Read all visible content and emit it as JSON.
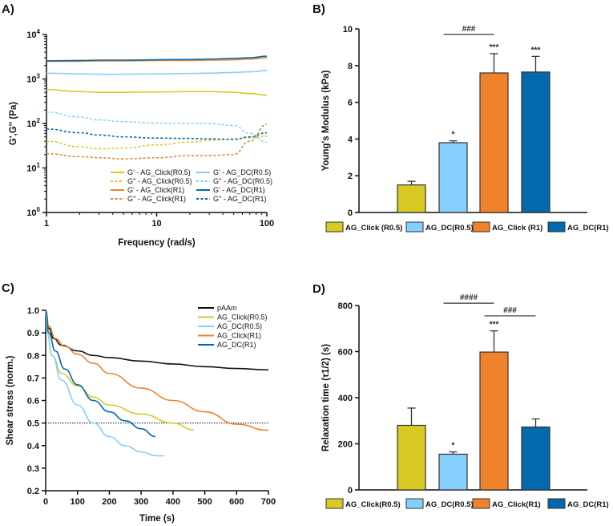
{
  "colors": {
    "click_r05": "#d8c925",
    "dc_r05": "#85cffc",
    "click_r1": "#ef832b",
    "dc_r1": "#0369ad",
    "pAAm": "#111111"
  },
  "chart_data": [
    {
      "panel": "A)",
      "type": "line",
      "xlabel": "Frequency (rad/s)",
      "ylabel": "G',G'' (Pa)",
      "xscale": "log",
      "yscale": "log",
      "xlim": [
        1,
        100
      ],
      "ylim": [
        1,
        10000
      ],
      "xticks": [
        "1",
        "10",
        "100"
      ],
      "yticks": [
        {
          "base": "10",
          "exp": "0"
        },
        {
          "base": "10",
          "exp": "1"
        },
        {
          "base": "10",
          "exp": "2"
        },
        {
          "base": "10",
          "exp": "3"
        },
        {
          "base": "10",
          "exp": "4"
        }
      ],
      "legend_placement": "bottom-right",
      "x": [
        1,
        2,
        3,
        5,
        10,
        20,
        30,
        50,
        70,
        100
      ],
      "series": [
        {
          "name": "G' - AG_Click(R0.5)",
          "color": "#d8c925",
          "dash": false,
          "values": [
            580,
            520,
            500,
            500,
            510,
            520,
            520,
            500,
            470,
            430
          ]
        },
        {
          "name": "G'' - AG_Click(R0.5)",
          "color": "#d8c925",
          "dash": true,
          "values": [
            40,
            30,
            27,
            28,
            33,
            38,
            42,
            45,
            48,
            52
          ]
        },
        {
          "name": "G' - AG_Click(R1)",
          "color": "#ef832b",
          "dash": false,
          "values": [
            2500,
            2500,
            2550,
            2550,
            2600,
            2600,
            2650,
            2700,
            2800,
            3000
          ]
        },
        {
          "name": "G'' - AG_Click(R1)",
          "color": "#ef832b",
          "dash": true,
          "values": [
            21,
            18,
            17,
            16,
            17,
            19,
            19,
            20,
            40,
            95
          ]
        },
        {
          "name": "G' - AG_DC(R0.5)",
          "color": "#85cffc",
          "dash": false,
          "values": [
            1350,
            1300,
            1280,
            1280,
            1300,
            1330,
            1350,
            1400,
            1450,
            1550
          ]
        },
        {
          "name": "G'' - AG_DC(R0.5)",
          "color": "#85cffc",
          "dash": true,
          "values": [
            180,
            140,
            120,
            110,
            102,
            100,
            100,
            90,
            60,
            38
          ]
        },
        {
          "name": "G' - AG_DC(R1)",
          "color": "#0369ad",
          "dash": false,
          "values": [
            2550,
            2600,
            2650,
            2650,
            2700,
            2750,
            2800,
            2900,
            3000,
            3250
          ]
        },
        {
          "name": "G'' - AG_DC(R1)",
          "color": "#0369ad",
          "dash": true,
          "values": [
            75,
            62,
            55,
            50,
            47,
            46,
            45,
            44,
            50,
            62
          ]
        }
      ]
    },
    {
      "panel": "B)",
      "type": "bar",
      "ylabel": "Young's Modulus (kPa)",
      "ylim": [
        0,
        10
      ],
      "yticks": [
        0,
        2,
        4,
        6,
        8,
        10
      ],
      "categories": [
        "AG_Click (R0.5)",
        "AG_DC(R0.5)",
        "AG_Click (R1)",
        "AG_DC(R1)"
      ],
      "values": [
        1.5,
        3.8,
        7.6,
        7.65
      ],
      "errors": [
        0.2,
        0.1,
        1.05,
        0.85
      ],
      "colors": [
        "#d8c925",
        "#85cffc",
        "#ef832b",
        "#0369ad"
      ],
      "significance": [
        "",
        "*",
        "***",
        "***"
      ],
      "brackets": [
        {
          "from": 1,
          "to": 2,
          "label": "###",
          "y": 9.7
        }
      ],
      "legend_placement": "bottom"
    },
    {
      "panel": "C)",
      "type": "line",
      "xlabel": "Time (s)",
      "ylabel": "Shear stress (norm.)",
      "xlim": [
        0,
        700
      ],
      "ylim": [
        0.2,
        1.0
      ],
      "xticks": [
        0,
        100,
        200,
        300,
        400,
        500,
        600,
        700
      ],
      "yticks": [
        "0.2",
        "0.3",
        "0.4",
        "0.5",
        "0.6",
        "0.7",
        "0.8",
        "0.9",
        "1.0"
      ],
      "reference_line": 0.5,
      "legend_placement": "top-right",
      "series": [
        {
          "name": "pAAm",
          "color": "#111111",
          "points": [
            [
              0,
              1.0
            ],
            [
              10,
              0.92
            ],
            [
              25,
              0.875
            ],
            [
              50,
              0.845
            ],
            [
              100,
              0.82
            ],
            [
              150,
              0.8
            ],
            [
              200,
              0.79
            ],
            [
              300,
              0.775
            ],
            [
              400,
              0.762
            ],
            [
              500,
              0.75
            ],
            [
              600,
              0.742
            ],
            [
              700,
              0.736
            ]
          ]
        },
        {
          "name": "AG_Click(R0.5)",
          "color": "#d8c925",
          "points": [
            [
              0,
              1.0
            ],
            [
              5,
              0.9
            ],
            [
              20,
              0.8
            ],
            [
              50,
              0.72
            ],
            [
              100,
              0.665
            ],
            [
              150,
              0.615
            ],
            [
              200,
              0.58
            ],
            [
              300,
              0.54
            ],
            [
              400,
              0.5
            ],
            [
              465,
              0.47
            ]
          ]
        },
        {
          "name": "AG_DC(R0.5)",
          "color": "#85cffc",
          "points": [
            [
              0,
              1.0
            ],
            [
              5,
              0.9
            ],
            [
              20,
              0.8
            ],
            [
              50,
              0.69
            ],
            [
              100,
              0.58
            ],
            [
              150,
              0.5
            ],
            [
              200,
              0.44
            ],
            [
              250,
              0.4
            ],
            [
              300,
              0.372
            ],
            [
              350,
              0.355
            ],
            [
              372,
              0.355
            ]
          ]
        },
        {
          "name": "AG_Click(R1)",
          "color": "#ef832b",
          "points": [
            [
              0,
              1.0
            ],
            [
              10,
              0.93
            ],
            [
              30,
              0.875
            ],
            [
              60,
              0.84
            ],
            [
              100,
              0.805
            ],
            [
              150,
              0.765
            ],
            [
              200,
              0.72
            ],
            [
              300,
              0.655
            ],
            [
              400,
              0.6
            ],
            [
              500,
              0.55
            ],
            [
              600,
              0.495
            ],
            [
              700,
              0.468
            ]
          ]
        },
        {
          "name": "AG_DC(R1)",
          "color": "#0369ad",
          "points": [
            [
              0,
              1.0
            ],
            [
              10,
              0.9
            ],
            [
              30,
              0.82
            ],
            [
              60,
              0.74
            ],
            [
              100,
              0.67
            ],
            [
              150,
              0.6
            ],
            [
              200,
              0.55
            ],
            [
              250,
              0.51
            ],
            [
              300,
              0.475
            ],
            [
              345,
              0.44
            ]
          ]
        }
      ]
    },
    {
      "panel": "D)",
      "type": "bar",
      "ylabel": "Relaxation time (τ1/2) (s)",
      "ylim": [
        0,
        800
      ],
      "yticks": [
        0,
        200,
        400,
        600,
        800
      ],
      "categories": [
        "AG_Click(R0.5)",
        "AG_DC(R0.5)",
        "AG_Click(R1)",
        "AG_DC(R1)"
      ],
      "values": [
        280,
        155,
        598,
        273
      ],
      "errors": [
        75,
        10,
        92,
        35
      ],
      "colors": [
        "#d8c925",
        "#85cffc",
        "#ef832b",
        "#0369ad"
      ],
      "significance": [
        "",
        "*",
        "***",
        ""
      ],
      "brackets": [
        {
          "from": 1,
          "to": 2,
          "label": "####",
          "y": 810
        },
        {
          "from": 2,
          "to": 3,
          "label": "###",
          "y": 755
        }
      ],
      "legend_placement": "bottom"
    }
  ]
}
